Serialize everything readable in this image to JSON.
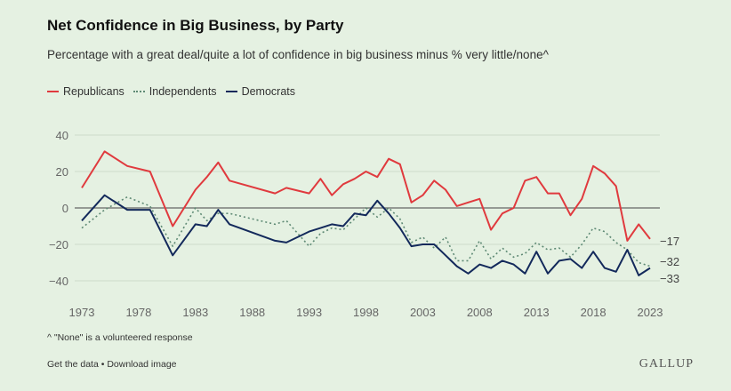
{
  "chart_data": {
    "type": "line",
    "title": "Net Confidence in Big Business, by Party",
    "subtitle": "Percentage with a great deal/quite a lot of confidence in big business minus % very little/none^",
    "xlabel": "",
    "ylabel": "",
    "ylim": [
      -50,
      45
    ],
    "xlim": [
      1973,
      2023
    ],
    "y_ticks": [
      40,
      20,
      0,
      -20,
      -40
    ],
    "y_tick_labels": [
      "40",
      "20",
      "0",
      "−20",
      "−40"
    ],
    "x_ticks": [
      1973,
      1978,
      1983,
      1988,
      1993,
      1998,
      2003,
      2008,
      2013,
      2018,
      2023
    ],
    "x_tick_labels": [
      "1973",
      "1978",
      "1983",
      "1988",
      "1993",
      "1998",
      "2003",
      "2008",
      "2013",
      "2018",
      "2023"
    ],
    "grid": true,
    "legend_placement": "top-left",
    "x": [
      1973,
      1975,
      1977,
      1979,
      1981,
      1983,
      1984,
      1985,
      1986,
      1990,
      1991,
      1993,
      1994,
      1995,
      1996,
      1997,
      1998,
      1999,
      2000,
      2001,
      2002,
      2003,
      2004,
      2005,
      2006,
      2007,
      2008,
      2009,
      2010,
      2011,
      2012,
      2013,
      2014,
      2015,
      2016,
      2017,
      2018,
      2019,
      2020,
      2021,
      2022,
      2023
    ],
    "series": [
      {
        "name": "Republicans",
        "color": "#e03a3e",
        "style": "solid",
        "end_label": "−17",
        "values": [
          11,
          31,
          23,
          20,
          -10,
          10,
          17,
          25,
          15,
          8,
          11,
          8,
          16,
          7,
          13,
          16,
          20,
          17,
          27,
          24,
          3,
          7,
          15,
          10,
          1,
          3,
          5,
          -12,
          -3,
          0,
          15,
          17,
          8,
          8,
          -4,
          5,
          23,
          19,
          12,
          -18,
          -9,
          -17
        ]
      },
      {
        "name": "Independents",
        "color": "#5f8a75",
        "style": "dotted",
        "end_label": "−32",
        "values": [
          -11,
          -1,
          6,
          1,
          -21,
          0,
          -7,
          -3,
          -3,
          -9,
          -7,
          -21,
          -14,
          -11,
          -12,
          -6,
          0,
          -5,
          0,
          -6,
          -19,
          -16,
          -22,
          -16,
          -29,
          -29,
          -18,
          -28,
          -22,
          -27,
          -25,
          -19,
          -23,
          -22,
          -27,
          -20,
          -11,
          -13,
          -19,
          -23,
          -30,
          -32
        ]
      },
      {
        "name": "Democrats",
        "color": "#13295b",
        "style": "solid",
        "end_label": "−33",
        "values": [
          -7,
          7,
          -1,
          -1,
          -26,
          -9,
          -10,
          -1,
          -9,
          -18,
          -19,
          -13,
          -11,
          -9,
          -10,
          -3,
          -4,
          4,
          -3,
          -11,
          -21,
          -20,
          -20,
          -26,
          -32,
          -36,
          -31,
          -33,
          -29,
          -31,
          -36,
          -24,
          -36,
          -29,
          -28,
          -33,
          -24,
          -33,
          -35,
          -23,
          -37,
          -33
        ]
      }
    ],
    "annotations": [
      "^ \"None\" is a volunteered response"
    ]
  },
  "footer": {
    "note": "^ \"None\" is a volunteered response",
    "get_data": "Get the data",
    "separator": " • ",
    "download": "Download image",
    "logo": "GALLUP"
  }
}
